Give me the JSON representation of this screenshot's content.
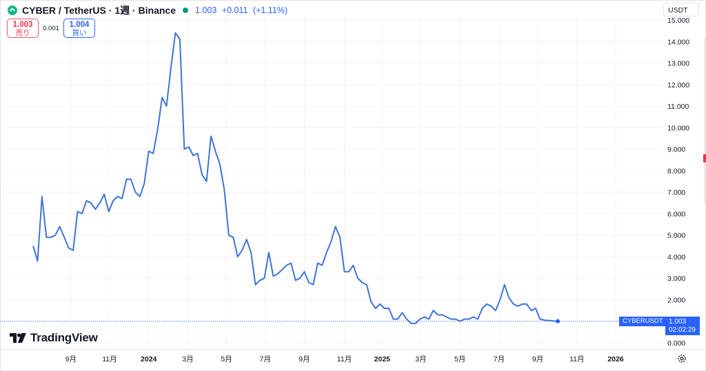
{
  "legend": {
    "symbol": "CYBER / TetherUS · 1週 · Binance",
    "last": "1.003",
    "change": "+0.011",
    "change_pct": "(+1.11%)"
  },
  "trade": {
    "sell_value": "1.003",
    "sell_label": "売り",
    "spread": "0.001",
    "buy_value": "1.004",
    "buy_label": "買い"
  },
  "currency": "USDT",
  "brand": "TradingView",
  "price_tag": {
    "symbol": "CYBERUSDT",
    "value": "1.003",
    "countdown": "02:02:29"
  },
  "colors": {
    "line": "#3d73d9",
    "accent": "#2962ff",
    "sell": "#f23645",
    "up": "#089981"
  },
  "icons": [
    "tradingview-logo-icon",
    "settings-gear-icon",
    "chevron-down-icon"
  ],
  "chart_data": {
    "type": "line",
    "ylim": [
      0,
      15
    ],
    "y_ticks": [
      0,
      1,
      2,
      3,
      4,
      5,
      6,
      7,
      8,
      9,
      10,
      11,
      12,
      13,
      14,
      15
    ],
    "y_tick_labels": [
      "0.000",
      "1.000",
      "2.000",
      "3.000",
      "4.000",
      "5.000",
      "6.000",
      "7.000",
      "8.000",
      "9.000",
      "10.000",
      "11.000",
      "12.000",
      "13.000",
      "14.000",
      "15.000"
    ],
    "x_tick_labels": [
      "9月",
      "11月",
      "2024",
      "3月",
      "5月",
      "7月",
      "9月",
      "11月",
      "2025",
      "3月",
      "5月",
      "7月",
      "9月",
      "11月",
      "2026"
    ],
    "x_tick_weeks": [
      8.5,
      17.2,
      26,
      34.8,
      43.5,
      52.2,
      61,
      70,
      78.5,
      87.2,
      96,
      104.8,
      113.5,
      122.3,
      131
    ],
    "x_unit": "weeks",
    "series": [
      {
        "values": [
          4.5,
          3.8,
          6.8,
          4.9,
          4.9,
          5.0,
          5.4,
          4.9,
          4.4,
          4.3,
          6.1,
          6.0,
          6.6,
          6.5,
          6.2,
          6.5,
          6.9,
          6.1,
          6.6,
          6.8,
          6.7,
          7.6,
          7.6,
          7.0,
          6.8,
          7.4,
          8.9,
          8.8,
          9.9,
          11.4,
          11.0,
          12.8,
          14.4,
          14.1,
          9.0,
          9.1,
          8.7,
          8.8,
          7.8,
          7.5,
          9.6,
          8.9,
          8.3,
          7.1,
          5.0,
          4.9,
          4.0,
          4.3,
          4.8,
          4.2,
          2.7,
          2.9,
          3.0,
          4.2,
          3.1,
          3.2,
          3.4,
          3.6,
          3.7,
          2.9,
          3.0,
          3.3,
          2.8,
          2.7,
          3.7,
          3.6,
          4.2,
          4.7,
          5.4,
          4.9,
          3.3,
          3.3,
          3.6,
          3.0,
          2.8,
          2.7,
          1.9,
          1.6,
          1.8,
          1.6,
          1.6,
          1.1,
          1.1,
          1.4,
          1.1,
          0.9,
          0.9,
          1.1,
          1.2,
          1.1,
          1.5,
          1.3,
          1.3,
          1.2,
          1.1,
          1.1,
          1.0,
          1.1,
          1.1,
          1.2,
          1.1,
          1.6,
          1.8,
          1.7,
          1.5,
          2.0,
          2.7,
          2.1,
          1.8,
          1.7,
          1.8,
          1.8,
          1.5,
          1.6,
          1.1,
          1.05,
          1.04,
          1.01,
          1.003
        ]
      }
    ]
  }
}
